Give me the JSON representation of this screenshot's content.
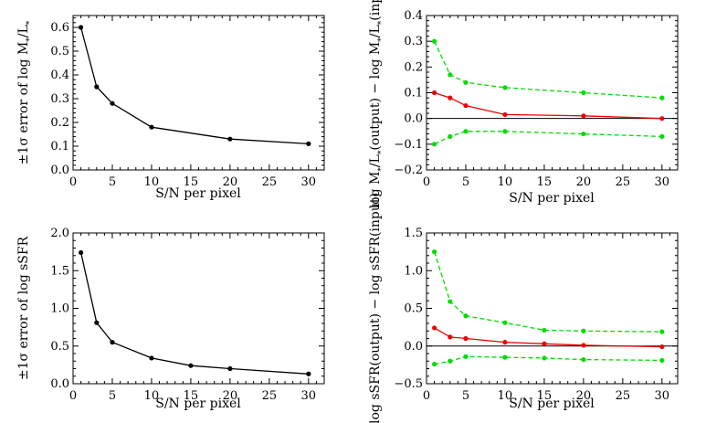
{
  "chart_data": [
    {
      "type": "line",
      "xlabel": "S/N per pixel",
      "ylabel": "±1σ error of  log M★/L★",
      "xlim": [
        0,
        32
      ],
      "ylim": [
        0,
        0.65
      ],
      "xticks": [
        0,
        5,
        10,
        15,
        20,
        25,
        30
      ],
      "yticks": [
        0.0,
        0.1,
        0.2,
        0.3,
        0.4,
        0.5,
        0.6
      ],
      "ytick_labels": [
        "0.0",
        "0.1",
        "0.2",
        "0.3",
        "0.4",
        "0.5",
        "0.6"
      ],
      "series": [
        {
          "x": [
            1,
            3,
            5,
            10,
            20,
            30
          ],
          "values": [
            0.6,
            0.35,
            0.28,
            0.18,
            0.13,
            0.11
          ],
          "color": "#000000",
          "dashed": false
        }
      ]
    },
    {
      "type": "line",
      "xlabel": "S/N per pixel",
      "ylabel": "log M★/L★(output) − log M★/L★(input)",
      "xlim": [
        0,
        32
      ],
      "ylim": [
        -0.2,
        0.4
      ],
      "xticks": [
        0,
        5,
        10,
        15,
        20,
        25,
        30
      ],
      "yticks": [
        -0.2,
        -0.1,
        0.0,
        0.1,
        0.2,
        0.3,
        0.4
      ],
      "ytick_labels": [
        "−0.2",
        "−0.1",
        "0.0",
        "0.1",
        "0.2",
        "0.3",
        "0.4"
      ],
      "zero_line": true,
      "series": [
        {
          "x": [
            1,
            3,
            5,
            10,
            20,
            30
          ],
          "values": [
            0.3,
            0.17,
            0.14,
            0.12,
            0.1,
            0.08
          ],
          "color": "#00dd00",
          "dashed": true
        },
        {
          "x": [
            1,
            3,
            5,
            10,
            20,
            30
          ],
          "values": [
            0.1,
            0.08,
            0.05,
            0.015,
            0.01,
            0.0
          ],
          "color": "#ee0000",
          "dashed": false
        },
        {
          "x": [
            1,
            3,
            5,
            10,
            20,
            30
          ],
          "values": [
            -0.1,
            -0.07,
            -0.05,
            -0.05,
            -0.06,
            -0.07
          ],
          "color": "#00dd00",
          "dashed": true
        }
      ]
    },
    {
      "type": "line",
      "xlabel": "S/N per pixel",
      "ylabel": "±1σ error of  log sSFR",
      "xlim": [
        0,
        32
      ],
      "ylim": [
        0,
        2.0
      ],
      "xticks": [
        0,
        5,
        10,
        15,
        20,
        25,
        30
      ],
      "yticks": [
        0.0,
        0.5,
        1.0,
        1.5,
        2.0
      ],
      "ytick_labels": [
        "0.0",
        "0.5",
        "1.0",
        "1.5",
        "2.0"
      ],
      "series": [
        {
          "x": [
            1,
            3,
            5,
            10,
            15,
            20,
            30
          ],
          "values": [
            1.74,
            0.81,
            0.55,
            0.34,
            0.24,
            0.2,
            0.13
          ],
          "color": "#000000",
          "dashed": false
        }
      ]
    },
    {
      "type": "line",
      "xlabel": "S/N per pixel",
      "ylabel": "log sSFR(output) − log sSFR(input)",
      "xlim": [
        0,
        32
      ],
      "ylim": [
        -0.5,
        1.5
      ],
      "xticks": [
        0,
        5,
        10,
        15,
        20,
        25,
        30
      ],
      "yticks": [
        -0.5,
        0.0,
        0.5,
        1.0,
        1.5
      ],
      "ytick_labels": [
        "−0.5",
        "0.0",
        "0.5",
        "1.0",
        "1.5"
      ],
      "zero_line": true,
      "series": [
        {
          "x": [
            1,
            3,
            5,
            10,
            15,
            20,
            30
          ],
          "values": [
            1.25,
            0.59,
            0.4,
            0.31,
            0.21,
            0.2,
            0.19
          ],
          "color": "#00dd00",
          "dashed": true
        },
        {
          "x": [
            1,
            3,
            5,
            10,
            15,
            20,
            30
          ],
          "values": [
            0.24,
            0.12,
            0.1,
            0.05,
            0.03,
            0.01,
            -0.01
          ],
          "color": "#ee0000",
          "dashed": false
        },
        {
          "x": [
            1,
            3,
            5,
            10,
            15,
            20,
            30
          ],
          "values": [
            -0.24,
            -0.2,
            -0.14,
            -0.15,
            -0.16,
            -0.18,
            -0.19
          ],
          "color": "#00dd00",
          "dashed": true
        }
      ]
    }
  ]
}
